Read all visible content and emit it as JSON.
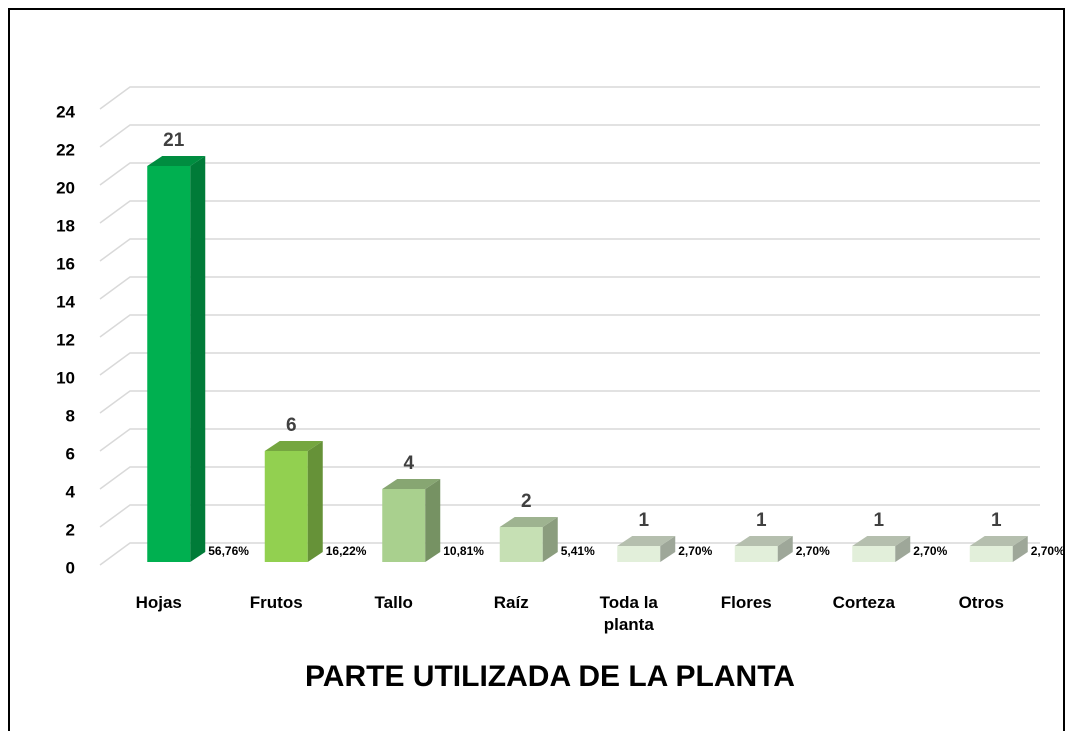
{
  "chart_data": {
    "type": "bar3d",
    "title": "PARTE UTILIZADA DE LA PLANTA",
    "categories": [
      "Hojas",
      "Frutos",
      "Tallo",
      "Raíz",
      "Toda la planta",
      "Flores",
      "Corteza",
      "Otros"
    ],
    "values": [
      21,
      6,
      4,
      2,
      1,
      1,
      1,
      1
    ],
    "percent_labels": [
      "56,76%",
      "16,22%",
      "10,81%",
      "5,41%",
      "2,70%",
      "2,70%",
      "2,70%",
      "2,70%"
    ],
    "colors": [
      "#00b050",
      "#92d050",
      "#a9d08e",
      "#c6e0b4",
      "#e2efda",
      "#e2efda",
      "#e2efda",
      "#e2efda"
    ],
    "ylim": [
      0,
      24
    ],
    "yticks": [
      0,
      2,
      4,
      6,
      8,
      10,
      12,
      14,
      16,
      18,
      20,
      22,
      24
    ],
    "grid": true
  }
}
